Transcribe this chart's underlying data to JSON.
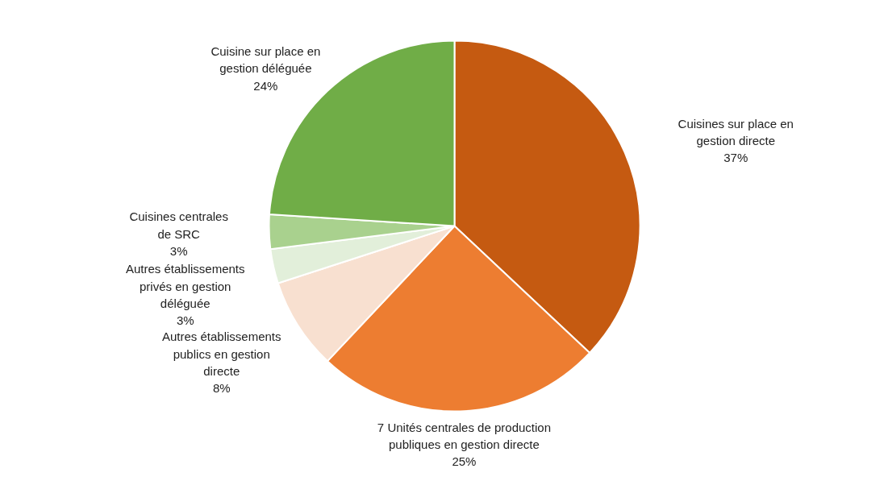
{
  "chart_data": {
    "type": "pie",
    "categories": [
      "Cuisines sur place en\ngestion directe",
      "7 Unités centrales de production\npubliques en gestion directe",
      "Autres établissements\npublics en gestion\ndirecte",
      "Autres établissements\nprivés en gestion\ndéléguée",
      "Cuisines centrales\nde SRC",
      "Cuisine sur place en\ngestion déléguée"
    ],
    "values": [
      37,
      25,
      8,
      3,
      3,
      24
    ],
    "colors": [
      "#c55a11",
      "#ed7d31",
      "#f8e0d0",
      "#e2efda",
      "#a9d18e",
      "#70ad47"
    ],
    "value_labels": [
      "37%",
      "25%",
      "8%",
      "3%",
      "3%",
      "24%"
    ]
  }
}
